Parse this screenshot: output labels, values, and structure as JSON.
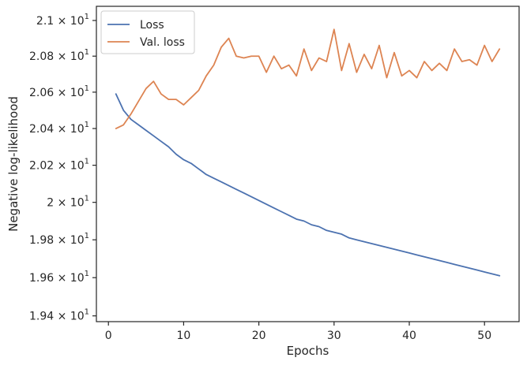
{
  "chart_data": {
    "type": "line",
    "title": "",
    "xlabel": "Epochs",
    "ylabel": "Negative log-likelihood",
    "xlim": [
      -1.6,
      54.6
    ],
    "ylim": [
      19.37,
      21.08
    ],
    "yscale": "log",
    "grid": false,
    "legend_position": "top-left",
    "x_ticks": [
      0,
      10,
      20,
      30,
      40,
      50
    ],
    "x_tick_labels": [
      "0",
      "10",
      "20",
      "30",
      "40",
      "50"
    ],
    "y_ticks": [
      19.4,
      19.6,
      19.8,
      20.0,
      20.2,
      20.4,
      20.6,
      20.8,
      21.0
    ],
    "y_tick_labels": [
      {
        "mantissa": "1.94",
        "exponent": "1"
      },
      {
        "mantissa": "1.96",
        "exponent": "1"
      },
      {
        "mantissa": "1.98",
        "exponent": "1"
      },
      {
        "mantissa": "2",
        "exponent": "1"
      },
      {
        "mantissa": "2.02",
        "exponent": "1"
      },
      {
        "mantissa": "2.04",
        "exponent": "1"
      },
      {
        "mantissa": "2.06",
        "exponent": "1"
      },
      {
        "mantissa": "2.08",
        "exponent": "1"
      },
      {
        "mantissa": "2.1",
        "exponent": "1"
      }
    ],
    "x": [
      1,
      2,
      3,
      4,
      5,
      6,
      7,
      8,
      9,
      10,
      11,
      12,
      13,
      14,
      15,
      16,
      17,
      18,
      19,
      20,
      21,
      22,
      23,
      24,
      25,
      26,
      27,
      28,
      29,
      30,
      31,
      32,
      33,
      34,
      35,
      36,
      37,
      38,
      39,
      40,
      41,
      42,
      43,
      44,
      45,
      46,
      47,
      48,
      49,
      50,
      51,
      52
    ],
    "series": [
      {
        "name": "Loss",
        "color": "#4c72b0",
        "values": [
          20.59,
          20.5,
          20.45,
          20.42,
          20.39,
          20.36,
          20.33,
          20.3,
          20.26,
          20.23,
          20.21,
          20.18,
          20.15,
          20.13,
          20.11,
          20.09,
          20.07,
          20.05,
          20.03,
          20.01,
          19.99,
          19.97,
          19.95,
          19.93,
          19.91,
          19.9,
          19.88,
          19.87,
          19.85,
          19.84,
          19.83,
          19.81,
          19.8,
          19.79,
          19.78,
          19.77,
          19.76,
          19.75,
          19.74,
          19.73,
          19.72,
          19.71,
          19.7,
          19.69,
          19.68,
          19.67,
          19.66,
          19.65,
          19.64,
          19.63,
          19.62,
          19.61
        ]
      },
      {
        "name": "Val. loss",
        "color": "#dd8452",
        "values": [
          20.4,
          20.42,
          20.48,
          20.55,
          20.62,
          20.66,
          20.59,
          20.56,
          20.56,
          20.53,
          20.57,
          20.61,
          20.69,
          20.75,
          20.85,
          20.9,
          20.8,
          20.79,
          20.8,
          20.8,
          20.71,
          20.8,
          20.73,
          20.75,
          20.69,
          20.84,
          20.72,
          20.79,
          20.77,
          20.95,
          20.72,
          20.87,
          20.71,
          20.81,
          20.73,
          20.86,
          20.68,
          20.82,
          20.69,
          20.72,
          20.68,
          20.77,
          20.72,
          20.76,
          20.72,
          20.84,
          20.77,
          20.78,
          20.75,
          20.86,
          20.77,
          20.84
        ]
      }
    ]
  }
}
